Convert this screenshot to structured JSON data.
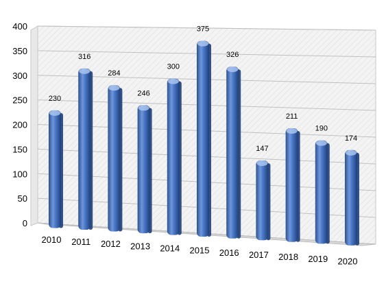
{
  "chart_data": {
    "type": "bar",
    "title": "",
    "xlabel": "",
    "ylabel": "",
    "categories": [
      "2010",
      "2011",
      "2012",
      "2013",
      "2014",
      "2015",
      "2016",
      "2017",
      "2018",
      "2019",
      "2020"
    ],
    "values": [
      230,
      316,
      284,
      246,
      300,
      375,
      326,
      147,
      211,
      190,
      174
    ],
    "data_labels": [
      "230",
      "316",
      "284",
      "246",
      "300",
      "375",
      "326",
      "147",
      "211",
      "190",
      "174"
    ],
    "ylim": [
      0,
      400
    ],
    "yticks": [
      "0",
      "50",
      "100",
      "150",
      "200",
      "250",
      "300",
      "350",
      "400"
    ],
    "grid": true,
    "legend": "none",
    "style": "3d-perspective columns",
    "colors": {
      "bar": "#4a78c8",
      "bar_dark": "#1f3f7a",
      "bar_light": "#a9c4ef",
      "wall": "#f2f2f2",
      "floor": "#d9d9d9",
      "grid": "#bfbfbf"
    }
  }
}
